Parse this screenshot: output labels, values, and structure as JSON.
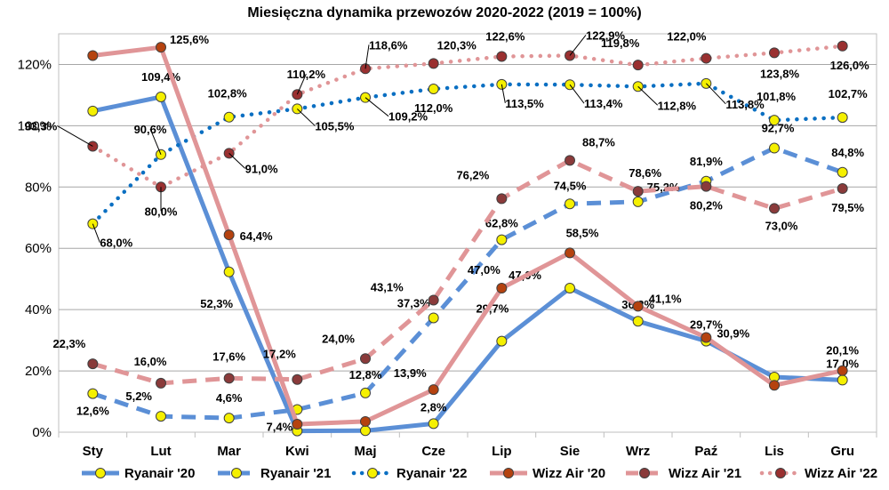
{
  "chart_data": {
    "type": "line",
    "title": "Miesięczna dynamika przewozów 2020-2022 (2019 = 100%)",
    "xlabel": "",
    "ylabel": "",
    "categories": [
      "Sty",
      "Lut",
      "Mar",
      "Kwi",
      "Maj",
      "Cze",
      "Lip",
      "Sie",
      "Wrz",
      "Paź",
      "Lis",
      "Gru"
    ],
    "ylim": [
      0,
      130
    ],
    "yticks": [
      "0%",
      "20%",
      "40%",
      "60%",
      "80%",
      "100%",
      "120%"
    ],
    "grid": true,
    "legend_position": "bottom",
    "series": [
      {
        "name": "Ryanair '20",
        "color": "#5b8fd6",
        "marker": "#f5f000",
        "style": "solid",
        "values": [
          104.8,
          109.4,
          52.3,
          0.4,
          0.5,
          2.8,
          29.7,
          47.0,
          36.2,
          29.7,
          18.0,
          17.0
        ],
        "labels": [
          "",
          "109,4%",
          "52,3%",
          "",
          "",
          "2,8%",
          "29,7%",
          "47,0%",
          "36,2%",
          "29,7%",
          "",
          "17,0%"
        ]
      },
      {
        "name": "Ryanair '21",
        "color": "#5b8fd6",
        "marker": "#f5f000",
        "style": "dashed",
        "values": [
          12.6,
          5.2,
          4.6,
          7.4,
          12.8,
          37.3,
          62.8,
          74.5,
          75.2,
          81.9,
          92.7,
          84.8
        ],
        "labels": [
          "12,6%",
          "5,2%",
          "4,6%",
          "7,4%",
          "12,8%",
          "37,3%",
          "62,8%",
          "74,5%",
          "75,2%",
          "81,9%",
          "92,7%",
          "84,8%"
        ]
      },
      {
        "name": "Ryanair '22",
        "color": "#0a6fc2",
        "marker": "#f5f000",
        "style": "dotted",
        "values": [
          68.0,
          90.6,
          102.8,
          105.5,
          109.2,
          112.0,
          113.5,
          113.4,
          112.8,
          113.8,
          101.8,
          102.7
        ],
        "labels": [
          "68,0%",
          "90,6%",
          "102,8%",
          "105,5%",
          "109,2%",
          "112,0%",
          "113,5%",
          "113,4%",
          "112,8%",
          "113,8%",
          "101,8%",
          "102,7%"
        ]
      },
      {
        "name": "Wizz Air '20",
        "color": "#e09597",
        "marker": "#b5420f",
        "style": "solid",
        "values": [
          122.9,
          125.6,
          64.4,
          2.6,
          3.5,
          13.9,
          47.0,
          58.5,
          41.1,
          30.9,
          15.3,
          20.1
        ],
        "labels": [
          "",
          "125,6%",
          "64,4%",
          "",
          "",
          "13,9%",
          "47,0%",
          "58,5%",
          "41,1%",
          "30,9%",
          "",
          "20,1%"
        ]
      },
      {
        "name": "Wizz Air '21",
        "color": "#e09597",
        "marker": "#8a3a3a",
        "style": "dashed",
        "values": [
          22.3,
          16.0,
          17.6,
          17.2,
          24.0,
          43.1,
          76.2,
          88.7,
          78.6,
          80.2,
          73.0,
          79.5
        ],
        "labels": [
          "22,3%",
          "16,0%",
          "17,6%",
          "17,2%",
          "24,0%",
          "43,1%",
          "76,2%",
          "88,7%",
          "78,6%",
          "80,2%",
          "73,0%",
          "79,5%"
        ]
      },
      {
        "name": "Wizz Air '22",
        "color": "#e09597",
        "marker": "#9a3030",
        "style": "dotted",
        "values": [
          93.3,
          80.0,
          91.0,
          110.2,
          118.6,
          120.3,
          122.6,
          122.9,
          119.8,
          122.0,
          123.8,
          126.0
        ],
        "labels": [
          "93,3%",
          "80,0%",
          "91,0%",
          "110,2%",
          "118,6%",
          "120,3%",
          "122,6%",
          "122,9%",
          "119,8%",
          "122,0%",
          "123,8%",
          "126,0%"
        ]
      }
    ]
  }
}
